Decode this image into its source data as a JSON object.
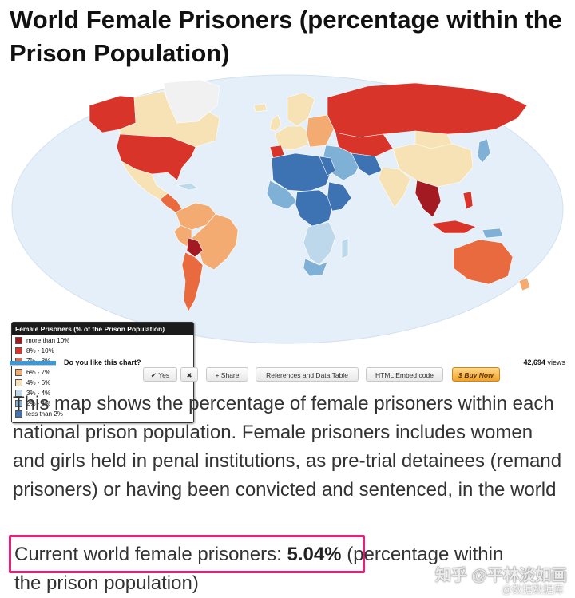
{
  "title": "World Female Prisoners (percentage within the Prison Population)",
  "legend": {
    "title": "Female Prisoners (% of the Prison Population)",
    "items": [
      {
        "label": "more than 10%",
        "color": "#a41a22"
      },
      {
        "label": "8% - 10%",
        "color": "#d9342a"
      },
      {
        "label": "7% - 8%",
        "color": "#ea6a3f"
      },
      {
        "label": "6% - 7%",
        "color": "#f3ab72"
      },
      {
        "label": "4% - 6%",
        "color": "#f6e2b4"
      },
      {
        "label": "3% - 4%",
        "color": "#bcd8ea"
      },
      {
        "label": "2% - 3%",
        "color": "#7fb1d6"
      },
      {
        "label": "less than 2%",
        "color": "#3e73b3"
      }
    ]
  },
  "colors": {
    "ocean": "#e4eff9",
    "no_data": "#f1f1f1",
    "highlight": "#e0247a"
  },
  "vote": {
    "question": "Do you like this chart?",
    "views": "42,694",
    "views_suffix": "views"
  },
  "toolbar": {
    "yes": "✔ Yes",
    "no": "✖",
    "share": "+ Share",
    "references": "References and Data Table",
    "embed": "HTML Embed code",
    "buy": "$ Buy Now"
  },
  "description": "This map shows the percentage of female prisoners within each national prison population. Female prisoners includes women and girls held in penal institutions, as pre-trial detainees (remand prisoners) or having been convicted and sentenced, in the world",
  "current": {
    "label": "Current world female prisoners: ",
    "value": "5.04%",
    "tail_1": "(percentage within",
    "tail_2": "the prison population)"
  },
  "watermark": {
    "line1": "知乎 @平林淡如画",
    "line2": "@数据数据库"
  }
}
